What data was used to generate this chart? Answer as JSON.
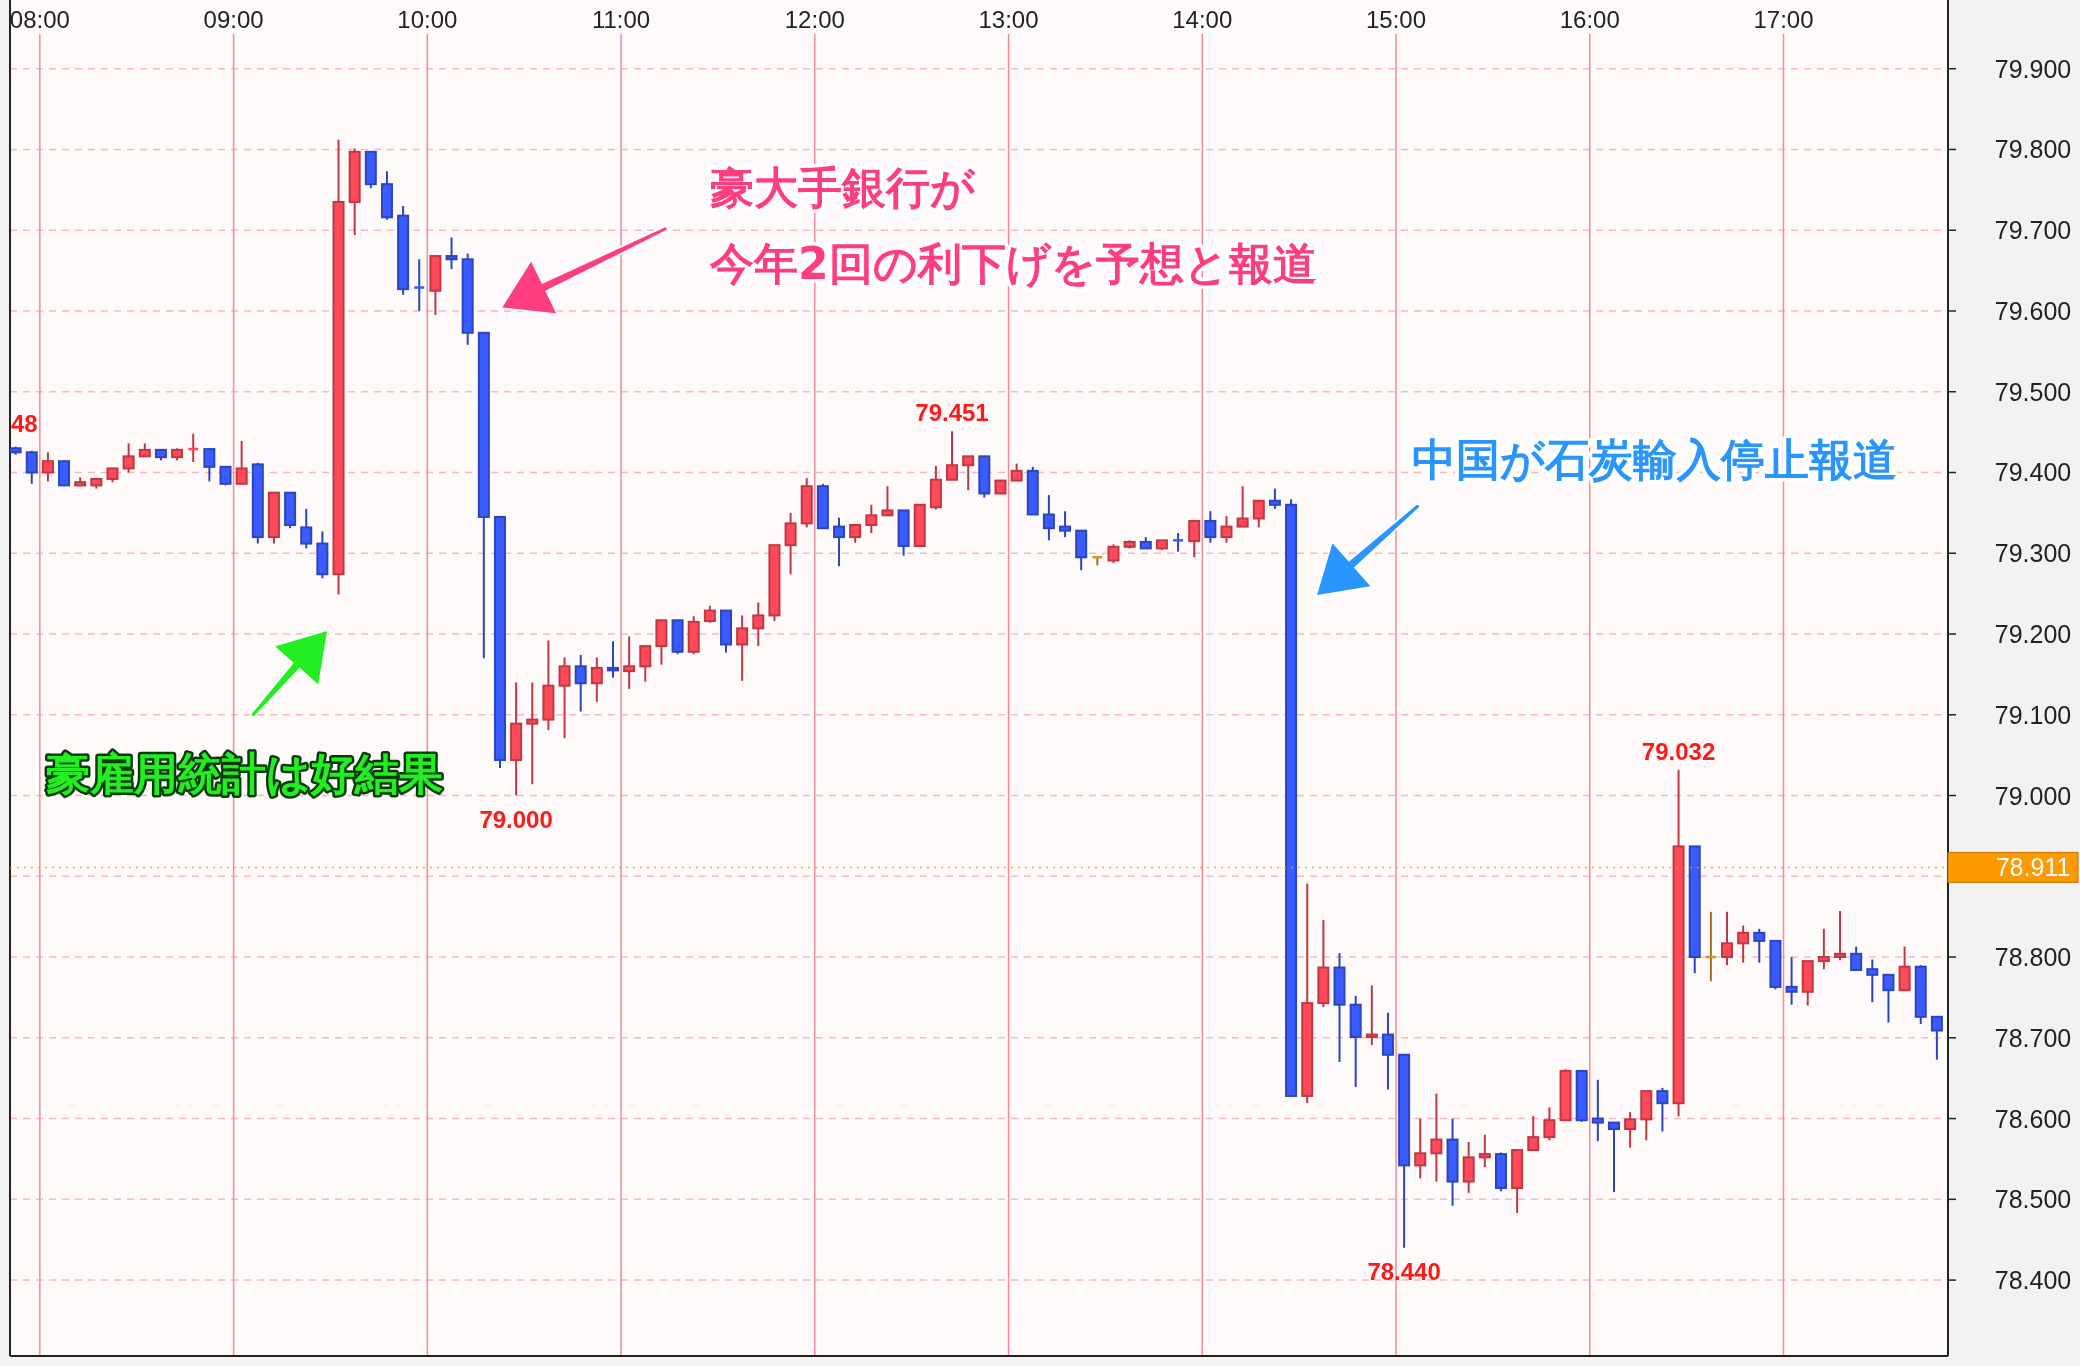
{
  "chart_data": {
    "type": "candlestick",
    "x": [
      7.875,
      7.9583,
      8.0417,
      8.125,
      8.2083,
      8.2917,
      8.375,
      8.4583,
      8.5417,
      8.625,
      8.7083,
      8.7917,
      8.875,
      8.9583,
      9.0417,
      9.125,
      9.2083,
      9.2917,
      9.375,
      9.4583,
      9.5417,
      9.625,
      9.7083,
      9.7917,
      9.875,
      9.9583,
      10.0417,
      10.125,
      10.2083,
      10.2917,
      10.375,
      10.4583,
      10.5417,
      10.625,
      10.7083,
      10.7917,
      10.875,
      10.9583,
      11.0417,
      11.125,
      11.2083,
      11.2917,
      11.375,
      11.4583,
      11.5417,
      11.625,
      11.7083,
      11.7917,
      11.875,
      11.9583,
      12.0417,
      12.125,
      12.2083,
      12.2917,
      12.375,
      12.4583,
      12.5417,
      12.625,
      12.7083,
      12.7917,
      12.875,
      12.9583,
      13.0417,
      13.125,
      13.2083,
      13.2917,
      13.375,
      13.4583,
      13.5417,
      13.625,
      13.7083,
      13.7917,
      13.875,
      13.9583,
      14.0417,
      14.125,
      14.2083,
      14.2917,
      14.375,
      14.4583,
      14.5417,
      14.625,
      14.7083,
      14.7917,
      14.875,
      14.9583,
      15.0417,
      15.125,
      15.2083,
      15.2917,
      15.375,
      15.4583,
      15.5417,
      15.625,
      15.7083,
      15.7917,
      15.875,
      15.9583,
      16.0417,
      16.125,
      16.2083,
      16.2917,
      16.375,
      16.4583,
      16.5417,
      16.625,
      16.7083,
      16.7917,
      16.875,
      16.9583,
      17.0417,
      17.125,
      17.2083,
      17.2917,
      17.375,
      17.4583,
      17.5417,
      17.625,
      17.7083,
      17.7917
    ],
    "ohlc": [
      [
        79.43,
        79.432,
        79.422,
        79.425
      ],
      [
        79.425,
        79.427,
        79.386,
        79.4
      ],
      [
        79.4,
        79.425,
        79.389,
        79.414
      ],
      [
        79.414,
        79.414,
        79.384,
        79.384
      ],
      [
        79.384,
        79.394,
        79.383,
        79.388
      ],
      [
        79.384,
        79.392,
        79.38,
        79.392
      ],
      [
        79.392,
        79.405,
        79.388,
        79.405
      ],
      [
        79.405,
        79.436,
        79.4,
        79.42
      ],
      [
        79.42,
        79.436,
        79.42,
        79.428
      ],
      [
        79.428,
        79.428,
        79.415,
        79.419
      ],
      [
        79.419,
        79.43,
        79.415,
        79.428
      ],
      [
        79.427,
        79.448,
        79.413,
        79.429
      ],
      [
        79.429,
        79.43,
        79.389,
        79.407
      ],
      [
        79.407,
        79.408,
        79.384,
        79.386
      ],
      [
        79.386,
        79.439,
        79.386,
        79.405
      ],
      [
        79.41,
        79.412,
        79.312,
        79.32
      ],
      [
        79.32,
        79.375,
        79.312,
        79.375
      ],
      [
        79.375,
        79.375,
        79.331,
        79.335
      ],
      [
        79.332,
        79.355,
        79.306,
        79.312
      ],
      [
        79.312,
        79.327,
        79.269,
        79.274
      ],
      [
        79.274,
        79.812,
        79.249,
        79.735
      ],
      [
        79.735,
        79.801,
        79.694,
        79.797
      ],
      [
        79.797,
        79.797,
        79.752,
        79.757
      ],
      [
        79.757,
        79.773,
        79.713,
        79.716
      ],
      [
        79.718,
        79.73,
        79.62,
        79.627
      ],
      [
        79.629,
        79.664,
        79.6,
        79.627
      ],
      [
        79.625,
        79.668,
        79.595,
        79.668
      ],
      [
        79.668,
        79.691,
        79.652,
        79.664
      ],
      [
        79.664,
        79.671,
        79.558,
        79.573
      ],
      [
        79.573,
        79.573,
        79.17,
        79.345
      ],
      [
        79.345,
        79.345,
        79.034,
        79.044
      ],
      [
        79.044,
        79.14,
        79.0,
        79.089
      ],
      [
        79.089,
        79.14,
        79.014,
        79.094
      ],
      [
        79.094,
        79.192,
        79.081,
        79.136
      ],
      [
        79.136,
        79.171,
        79.071,
        79.16
      ],
      [
        79.16,
        79.174,
        79.104,
        79.139
      ],
      [
        79.139,
        79.171,
        79.116,
        79.158
      ],
      [
        79.158,
        79.191,
        79.146,
        79.155
      ],
      [
        79.154,
        79.197,
        79.132,
        79.16
      ],
      [
        79.16,
        79.185,
        79.141,
        79.185
      ],
      [
        79.185,
        79.217,
        79.162,
        79.217
      ],
      [
        79.217,
        79.217,
        79.175,
        79.178
      ],
      [
        79.178,
        79.222,
        79.175,
        79.215
      ],
      [
        79.216,
        79.235,
        79.214,
        79.229
      ],
      [
        79.229,
        79.229,
        79.177,
        79.187
      ],
      [
        79.187,
        79.223,
        79.142,
        79.207
      ],
      [
        79.207,
        79.239,
        79.185,
        79.223
      ],
      [
        79.223,
        79.31,
        79.216,
        79.31
      ],
      [
        79.31,
        79.35,
        79.274,
        79.337
      ],
      [
        79.337,
        79.393,
        79.332,
        79.383
      ],
      [
        79.383,
        79.386,
        79.331,
        79.331
      ],
      [
        79.333,
        79.344,
        79.284,
        79.32
      ],
      [
        79.32,
        79.335,
        79.313,
        79.335
      ],
      [
        79.335,
        79.36,
        79.325,
        79.347
      ],
      [
        79.347,
        79.383,
        79.347,
        79.353
      ],
      [
        79.353,
        79.353,
        79.297,
        79.309
      ],
      [
        79.309,
        79.36,
        79.309,
        79.36
      ],
      [
        79.357,
        79.408,
        79.354,
        79.391
      ],
      [
        79.391,
        79.451,
        79.391,
        79.409
      ],
      [
        79.409,
        79.42,
        79.378,
        79.42
      ],
      [
        79.42,
        79.42,
        79.369,
        79.374
      ],
      [
        79.374,
        79.39,
        79.373,
        79.39
      ],
      [
        79.39,
        79.411,
        79.39,
        79.402
      ],
      [
        79.402,
        79.407,
        79.348,
        79.348
      ],
      [
        79.348,
        79.372,
        79.316,
        79.331
      ],
      [
        79.333,
        79.352,
        79.32,
        79.328
      ],
      [
        79.328,
        79.328,
        79.279,
        79.295
      ],
      [
        79.295,
        79.296,
        79.285,
        79.295
      ],
      [
        79.291,
        79.311,
        79.288,
        79.308
      ],
      [
        79.308,
        79.316,
        79.306,
        79.314
      ],
      [
        79.314,
        79.32,
        79.306,
        79.306
      ],
      [
        79.306,
        79.316,
        79.304,
        79.316
      ],
      [
        79.316,
        79.325,
        79.302,
        79.315
      ],
      [
        79.315,
        79.34,
        79.295,
        79.34
      ],
      [
        79.34,
        79.352,
        79.313,
        79.32
      ],
      [
        79.32,
        79.346,
        79.313,
        79.333
      ],
      [
        79.333,
        79.383,
        79.333,
        79.343
      ],
      [
        79.343,
        79.365,
        79.332,
        79.365
      ],
      [
        79.365,
        79.38,
        79.355,
        79.36
      ],
      [
        79.36,
        79.367,
        78.628,
        78.628
      ],
      [
        78.628,
        78.891,
        78.619,
        78.743
      ],
      [
        78.743,
        78.846,
        78.738,
        78.787
      ],
      [
        78.787,
        78.805,
        78.67,
        78.741
      ],
      [
        78.741,
        78.752,
        78.639,
        78.701
      ],
      [
        78.701,
        78.765,
        78.691,
        78.704
      ],
      [
        78.704,
        78.731,
        78.636,
        78.679
      ],
      [
        78.679,
        78.679,
        78.44,
        78.542
      ],
      [
        78.542,
        78.6,
        78.526,
        78.557
      ],
      [
        78.557,
        78.631,
        78.522,
        78.574
      ],
      [
        78.574,
        78.6,
        78.492,
        78.522
      ],
      [
        78.522,
        78.571,
        78.508,
        78.552
      ],
      [
        78.552,
        78.58,
        78.54,
        78.556
      ],
      [
        78.556,
        78.558,
        78.51,
        78.514
      ],
      [
        78.514,
        78.561,
        78.483,
        78.561
      ],
      [
        78.561,
        78.603,
        78.561,
        78.577
      ],
      [
        78.577,
        78.614,
        78.573,
        78.598
      ],
      [
        78.598,
        78.661,
        78.598,
        78.659
      ],
      [
        78.659,
        78.659,
        78.596,
        78.598
      ],
      [
        78.6,
        78.648,
        78.572,
        78.595
      ],
      [
        78.595,
        78.595,
        78.509,
        78.587
      ],
      [
        78.587,
        78.608,
        78.564,
        78.599
      ],
      [
        78.599,
        78.634,
        78.573,
        78.634
      ],
      [
        78.634,
        78.638,
        78.584,
        78.619
      ],
      [
        78.619,
        79.032,
        78.603,
        78.937
      ],
      [
        78.937,
        78.937,
        78.78,
        78.8
      ],
      [
        78.8,
        78.856,
        78.77,
        78.8
      ],
      [
        78.8,
        78.856,
        78.79,
        78.817
      ],
      [
        78.817,
        78.839,
        78.793,
        78.83
      ],
      [
        78.83,
        78.835,
        78.793,
        78.82
      ],
      [
        78.82,
        78.82,
        78.76,
        78.763
      ],
      [
        78.763,
        78.8,
        78.741,
        78.757
      ],
      [
        78.757,
        78.795,
        78.74,
        78.795
      ],
      [
        78.795,
        78.835,
        78.785,
        78.8
      ],
      [
        78.8,
        78.857,
        78.796,
        78.804
      ],
      [
        78.804,
        78.813,
        78.784,
        78.784
      ],
      [
        78.785,
        78.797,
        78.744,
        78.778
      ],
      [
        78.778,
        78.778,
        78.719,
        78.759
      ],
      [
        78.759,
        78.813,
        78.758,
        78.788
      ],
      [
        78.788,
        78.79,
        78.717,
        78.726
      ],
      [
        78.726,
        78.726,
        78.673,
        78.709
      ]
    ],
    "colors": [
      "#3a5cff",
      "#3a5cff",
      "#ff4a5a",
      "#3a5cff",
      "#ff4a5a",
      "#ff4a5a",
      "#ff4a5a",
      "#ff4a5a",
      "#ff4a5a",
      "#3a5cff",
      "#ff4a5a",
      "#ff4a5a",
      "#3a5cff",
      "#3a5cff",
      "#ff4a5a",
      "#3a5cff",
      "#ff4a5a",
      "#3a5cff",
      "#3a5cff",
      "#3a5cff",
      "#ff4a5a",
      "#ff4a5a",
      "#3a5cff",
      "#3a5cff",
      "#3a5cff",
      "#3a5cff",
      "#ff4a5a",
      "#3a5cff",
      "#3a5cff",
      "#3a5cff",
      "#3a5cff",
      "#ff4a5a",
      "#ff4a5a",
      "#ff4a5a",
      "#ff4a5a",
      "#3a5cff",
      "#ff4a5a",
      "#3a5cff",
      "#ff4a5a",
      "#ff4a5a",
      "#ff4a5a",
      "#3a5cff",
      "#ff4a5a",
      "#ff4a5a",
      "#3a5cff",
      "#ff4a5a",
      "#ff4a5a",
      "#ff4a5a",
      "#ff4a5a",
      "#ff4a5a",
      "#3a5cff",
      "#3a5cff",
      "#ff4a5a",
      "#ff4a5a",
      "#ff4a5a",
      "#3a5cff",
      "#ff4a5a",
      "#ff4a5a",
      "#ff4a5a",
      "#ff4a5a",
      "#3a5cff",
      "#ff4a5a",
      "#ff4a5a",
      "#3a5cff",
      "#3a5cff",
      "#3a5cff",
      "#3a5cff",
      "#cc9a2a",
      "#ff4a5a",
      "#ff4a5a",
      "#3a5cff",
      "#ff4a5a",
      "#3a5cff",
      "#ff4a5a",
      "#3a5cff",
      "#ff4a5a",
      "#ff4a5a",
      "#ff4a5a",
      "#3a5cff",
      "#3a5cff",
      "#ff4a5a",
      "#ff4a5a",
      "#3a5cff",
      "#3a5cff",
      "#ff4a5a",
      "#3a5cff",
      "#3a5cff",
      "#ff4a5a",
      "#ff4a5a",
      "#3a5cff",
      "#ff4a5a",
      "#ff4a5a",
      "#3a5cff",
      "#ff4a5a",
      "#ff4a5a",
      "#ff4a5a",
      "#ff4a5a",
      "#3a5cff",
      "#3a5cff",
      "#3a5cff",
      "#ff4a5a",
      "#ff4a5a",
      "#3a5cff",
      "#ff4a5a",
      "#3a5cff",
      "#cc9a2a",
      "#ff4a5a",
      "#ff4a5a",
      "#3a5cff",
      "#3a5cff",
      "#3a5cff",
      "#ff4a5a",
      "#ff4a5a",
      "#ff4a5a",
      "#3a5cff",
      "#3a5cff",
      "#3a5cff",
      "#ff4a5a",
      "#3a5cff",
      "#3a5cff"
    ],
    "xlim": [
      7.846,
      17.849
    ],
    "xticks": [
      {
        "value": 8,
        "label": "08:00"
      },
      {
        "value": 9,
        "label": "09:00"
      },
      {
        "value": 10,
        "label": "10:00"
      },
      {
        "value": 11,
        "label": "11:00"
      },
      {
        "value": 12,
        "label": "12:00"
      },
      {
        "value": 13,
        "label": "13:00"
      },
      {
        "value": 14,
        "label": "14:00"
      },
      {
        "value": 15,
        "label": "15:00"
      },
      {
        "value": 16,
        "label": "16:00"
      },
      {
        "value": 17,
        "label": "17:00"
      }
    ],
    "ylim": [
      78.306,
      79.938
    ],
    "yticks": [
      {
        "value": 78.4,
        "label": "78.400"
      },
      {
        "value": 78.5,
        "label": "78.500"
      },
      {
        "value": 78.6,
        "label": "78.600"
      },
      {
        "value": 78.7,
        "label": "78.700"
      },
      {
        "value": 78.8,
        "label": "78.800"
      },
      {
        "value": 78.9,
        "label": null
      },
      {
        "value": 79.0,
        "label": "79.000"
      },
      {
        "value": 79.1,
        "label": "79.100"
      },
      {
        "value": 79.2,
        "label": "79.200"
      },
      {
        "value": 79.3,
        "label": "79.300"
      },
      {
        "value": 79.4,
        "label": "79.400"
      },
      {
        "value": 79.5,
        "label": "79.500"
      },
      {
        "value": 79.6,
        "label": "79.600"
      },
      {
        "value": 79.7,
        "label": "79.700"
      },
      {
        "value": 79.8,
        "label": "79.800"
      },
      {
        "value": 79.9,
        "label": "79.900"
      }
    ],
    "grid": true,
    "ref_lines": [
      {
        "axis": "y",
        "value": 78.911,
        "label": "78.911",
        "color": "#ff9900"
      }
    ],
    "annotations": [
      "48",
      {
        "text": "79.451",
        "x": 12.7083,
        "y": 79.451
      },
      {
        "text": "79.000",
        "x": 10.4583,
        "y": 79.0
      },
      {
        "text": "78.440",
        "x": 15.0417,
        "y": 78.44
      },
      {
        "text": "79.032",
        "x": 16.4583,
        "y": 79.032
      },
      "豪雇用統計は好結果",
      "豪大手銀行が",
      "今年2回の利下げを予想と報道",
      "中国が石炭輸入停止報道"
    ]
  }
}
